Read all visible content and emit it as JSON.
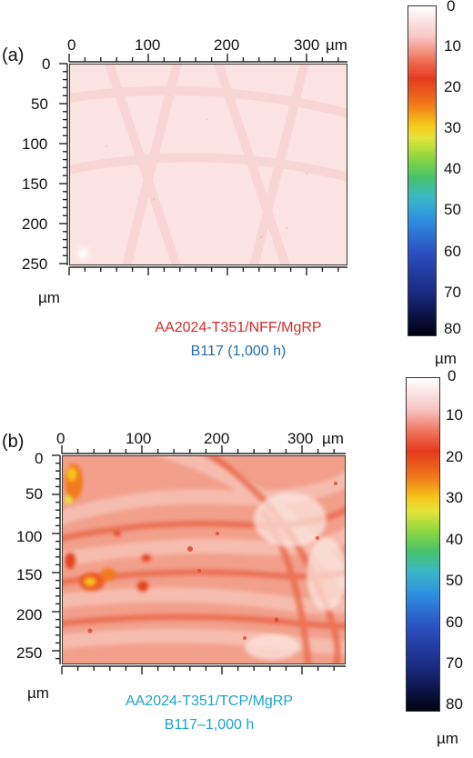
{
  "panels": [
    {
      "id": "a",
      "label": "(a)",
      "x_ticks": [
        "0",
        "100",
        "200",
        "300"
      ],
      "x_unit": "µm",
      "y_ticks": [
        "0",
        "50",
        "100",
        "150",
        "200",
        "250"
      ],
      "y_unit": "µm",
      "caption_line1": "AA2024-T351/NFF/MgRP",
      "caption_line2": "B117 (1,000 h)",
      "caption_line1_color": "#d42a2a",
      "caption_line2_color": "#1f6fb0",
      "colorbar_ticks": [
        "0",
        "10",
        "20",
        "30",
        "40",
        "50",
        "60",
        "70",
        "80"
      ],
      "colorbar_unit": "µm"
    },
    {
      "id": "b",
      "label": "(b)",
      "x_ticks": [
        "0",
        "100",
        "200",
        "300"
      ],
      "x_unit": "µm",
      "y_ticks": [
        "0",
        "50",
        "100",
        "150",
        "200",
        "250"
      ],
      "y_unit": "µm",
      "caption_line1": "AA2024-T351/TCP/MgRP",
      "caption_line2": "B117–1,000 h",
      "caption_line1_color": "#1aa3c8",
      "caption_line2_color": "#1aa3c8",
      "colorbar_ticks": [
        "0",
        "10",
        "20",
        "30",
        "40",
        "50",
        "60",
        "70",
        "80"
      ],
      "colorbar_unit": "µm"
    }
  ]
}
